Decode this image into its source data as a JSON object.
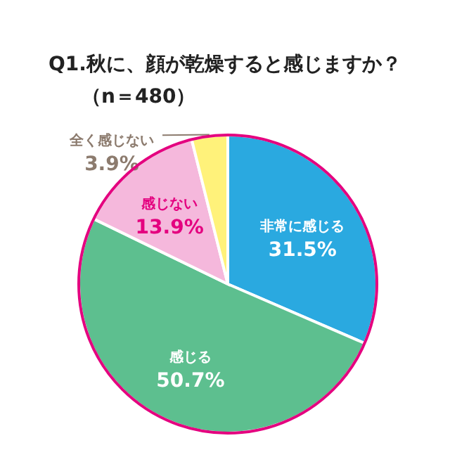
{
  "chart_data": {
    "type": "pie",
    "title": "Q1.秋に、顔が乾燥すると感じますか？",
    "subtitle": "（n＝480）",
    "categories": [
      "非常に感じる",
      "感じる",
      "感じない",
      "全く感じない"
    ],
    "values": [
      31.5,
      50.7,
      13.9,
      3.9
    ],
    "colors": [
      "#2aa9e0",
      "#5dbf8f",
      "#f5b8dc",
      "#fff27a"
    ],
    "value_labels": [
      "31.5%",
      "50.7%",
      "13.9%",
      "3.9%"
    ]
  }
}
